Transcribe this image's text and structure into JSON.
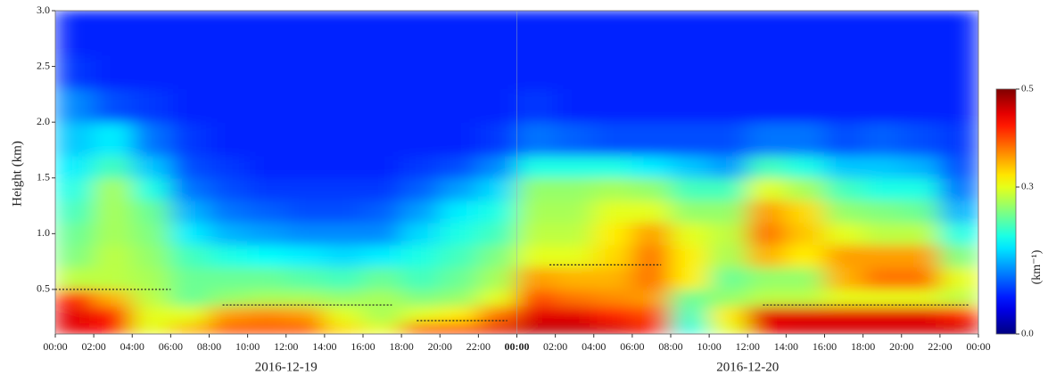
{
  "chart_data": {
    "type": "heatmap",
    "y_label": "Height (km)",
    "xlim": [
      0,
      48
    ],
    "ylim": [
      0.1,
      3.0
    ],
    "xticks": [
      {
        "value": 0,
        "label": "00:00"
      },
      {
        "value": 2,
        "label": "02:00"
      },
      {
        "value": 4,
        "label": "04:00"
      },
      {
        "value": 6,
        "label": "06:00"
      },
      {
        "value": 8,
        "label": "08:00"
      },
      {
        "value": 10,
        "label": "10:00"
      },
      {
        "value": 12,
        "label": "12:00"
      },
      {
        "value": 14,
        "label": "14:00"
      },
      {
        "value": 16,
        "label": "16:00"
      },
      {
        "value": 18,
        "label": "18:00"
      },
      {
        "value": 20,
        "label": "20:00"
      },
      {
        "value": 22,
        "label": "22:00"
      },
      {
        "value": 24,
        "label": "00:00"
      },
      {
        "value": 26,
        "label": "02:00"
      },
      {
        "value": 28,
        "label": "04:00"
      },
      {
        "value": 30,
        "label": "06:00"
      },
      {
        "value": 32,
        "label": "08:00"
      },
      {
        "value": 34,
        "label": "10:00"
      },
      {
        "value": 36,
        "label": "12:00"
      },
      {
        "value": 38,
        "label": "14:00"
      },
      {
        "value": 40,
        "label": "16:00"
      },
      {
        "value": 42,
        "label": "18:00"
      },
      {
        "value": 44,
        "label": "20:00"
      },
      {
        "value": 46,
        "label": "22:00"
      },
      {
        "value": 48,
        "label": "00:00"
      }
    ],
    "yticks": [
      0.5,
      {
        "value": 1,
        "label": "1.0"
      },
      1.5,
      {
        "value": 2,
        "label": "2.0"
      },
      2.5,
      {
        "value": 3,
        "label": "3.0"
      }
    ],
    "date_labels": [
      {
        "value": 12,
        "label": "2016-12-19"
      },
      {
        "value": 36,
        "label": "2016-12-20"
      }
    ],
    "x_edges": [
      0,
      2,
      4,
      6,
      8,
      10,
      12,
      14,
      16,
      18,
      20,
      22,
      24,
      26,
      28,
      30,
      32,
      34,
      36,
      38,
      40,
      42,
      44,
      46,
      48
    ],
    "y_edges": [
      0.1,
      0.2,
      0.35,
      0.5,
      0.7,
      0.9,
      1.1,
      1.3,
      1.5,
      1.7,
      2.0,
      2.3,
      2.6,
      3.0
    ],
    "values": [
      [
        0.45,
        0.45,
        0.42,
        0.28,
        0.25,
        0.24,
        0.22,
        0.2,
        0.18,
        0.16,
        0.13,
        0.09,
        0.08
      ],
      [
        0.44,
        0.42,
        0.35,
        0.28,
        0.28,
        0.27,
        0.27,
        0.27,
        0.22,
        0.18,
        0.1,
        0.08,
        0.08
      ],
      [
        0.3,
        0.3,
        0.28,
        0.27,
        0.26,
        0.25,
        0.24,
        0.2,
        0.16,
        0.12,
        0.09,
        0.08,
        0.08
      ],
      [
        0.35,
        0.3,
        0.24,
        0.24,
        0.22,
        0.18,
        0.15,
        0.12,
        0.1,
        0.09,
        0.08,
        0.08,
        0.08
      ],
      [
        0.4,
        0.36,
        0.26,
        0.24,
        0.2,
        0.15,
        0.12,
        0.1,
        0.09,
        0.08,
        0.08,
        0.08,
        0.08
      ],
      [
        0.4,
        0.37,
        0.27,
        0.24,
        0.19,
        0.14,
        0.11,
        0.09,
        0.08,
        0.08,
        0.08,
        0.08,
        0.08
      ],
      [
        0.4,
        0.36,
        0.27,
        0.23,
        0.18,
        0.13,
        0.1,
        0.09,
        0.08,
        0.08,
        0.08,
        0.08,
        0.08
      ],
      [
        0.33,
        0.3,
        0.26,
        0.22,
        0.17,
        0.13,
        0.1,
        0.09,
        0.08,
        0.08,
        0.08,
        0.08,
        0.08
      ],
      [
        0.3,
        0.27,
        0.27,
        0.24,
        0.18,
        0.13,
        0.11,
        0.09,
        0.08,
        0.08,
        0.08,
        0.08,
        0.08
      ],
      [
        0.4,
        0.3,
        0.25,
        0.22,
        0.2,
        0.17,
        0.14,
        0.11,
        0.09,
        0.08,
        0.08,
        0.08,
        0.08
      ],
      [
        0.42,
        0.32,
        0.26,
        0.24,
        0.22,
        0.2,
        0.18,
        0.14,
        0.1,
        0.08,
        0.08,
        0.08,
        0.08
      ],
      [
        0.45,
        0.38,
        0.3,
        0.27,
        0.25,
        0.22,
        0.2,
        0.17,
        0.13,
        0.09,
        0.08,
        0.08,
        0.08
      ],
      [
        0.47,
        0.45,
        0.4,
        0.36,
        0.3,
        0.28,
        0.27,
        0.26,
        0.2,
        0.12,
        0.09,
        0.08,
        0.08
      ],
      [
        0.47,
        0.45,
        0.38,
        0.35,
        0.3,
        0.28,
        0.27,
        0.26,
        0.2,
        0.11,
        0.08,
        0.08,
        0.08
      ],
      [
        0.46,
        0.42,
        0.37,
        0.35,
        0.33,
        0.32,
        0.3,
        0.27,
        0.2,
        0.1,
        0.08,
        0.08,
        0.08
      ],
      [
        0.44,
        0.4,
        0.36,
        0.38,
        0.38,
        0.36,
        0.3,
        0.26,
        0.18,
        0.1,
        0.08,
        0.08,
        0.08
      ],
      [
        0.2,
        0.22,
        0.24,
        0.32,
        0.32,
        0.3,
        0.26,
        0.22,
        0.16,
        0.1,
        0.08,
        0.08,
        0.08
      ],
      [
        0.3,
        0.32,
        0.26,
        0.24,
        0.27,
        0.28,
        0.26,
        0.22,
        0.14,
        0.1,
        0.08,
        0.08,
        0.08
      ],
      [
        0.45,
        0.45,
        0.28,
        0.26,
        0.35,
        0.38,
        0.36,
        0.3,
        0.22,
        0.12,
        0.08,
        0.08,
        0.08
      ],
      [
        0.46,
        0.45,
        0.28,
        0.26,
        0.32,
        0.34,
        0.33,
        0.27,
        0.2,
        0.12,
        0.08,
        0.08,
        0.08
      ],
      [
        0.46,
        0.45,
        0.3,
        0.35,
        0.36,
        0.3,
        0.26,
        0.22,
        0.16,
        0.1,
        0.08,
        0.08,
        0.08
      ],
      [
        0.46,
        0.45,
        0.3,
        0.38,
        0.36,
        0.28,
        0.25,
        0.2,
        0.16,
        0.11,
        0.08,
        0.08,
        0.08
      ],
      [
        0.46,
        0.45,
        0.3,
        0.38,
        0.36,
        0.28,
        0.24,
        0.2,
        0.15,
        0.1,
        0.08,
        0.08,
        0.08
      ],
      [
        0.46,
        0.42,
        0.28,
        0.3,
        0.25,
        0.2,
        0.15,
        0.12,
        0.1,
        0.09,
        0.08,
        0.08,
        0.08
      ]
    ],
    "segments": [
      {
        "x": [
          0,
          6
        ],
        "values": [
          0.5,
          0.5
        ]
      },
      {
        "x": [
          8.7,
          17.5
        ],
        "values": [
          0.36,
          0.36
        ]
      },
      {
        "x": [
          18.8,
          23.5
        ],
        "values": [
          0.22,
          0.22
        ]
      },
      {
        "x": [
          25.7,
          31.5
        ],
        "values": [
          0.72,
          0.72
        ]
      },
      {
        "x": [
          36.8,
          47.5
        ],
        "values": [
          0.36,
          0.36
        ]
      }
    ],
    "colorbar": {
      "label": "(km⁻¹)",
      "lim": [
        0,
        0.5
      ],
      "ticks": [
        {
          "value": 0,
          "label": "0.0"
        },
        0.3,
        0.5
      ]
    }
  }
}
